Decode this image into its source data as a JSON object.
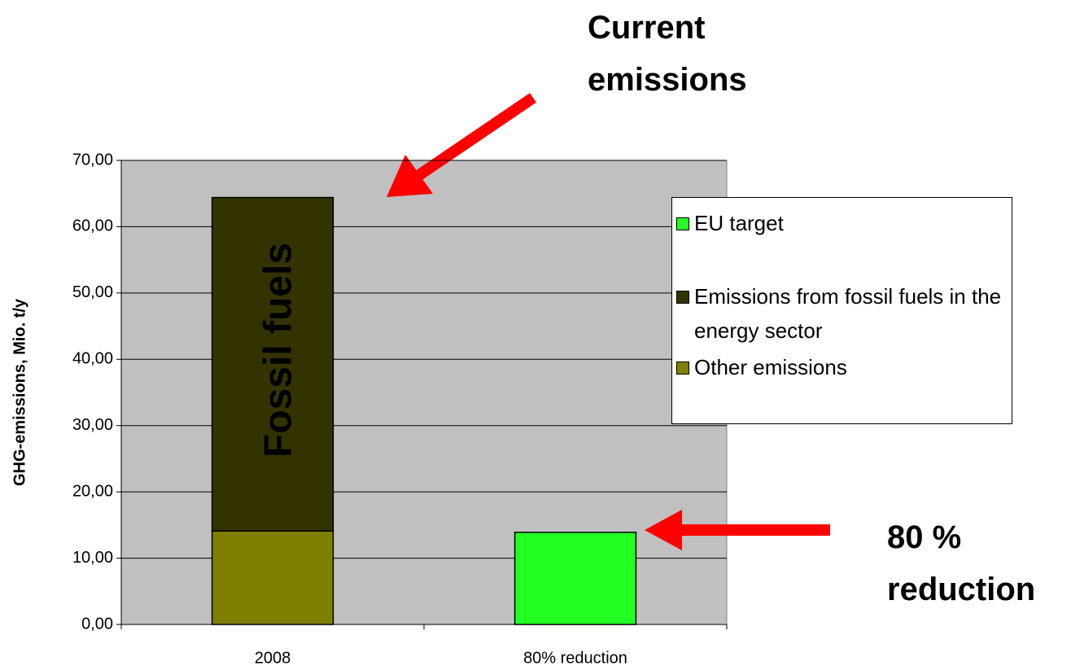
{
  "chart_data": {
    "type": "bar",
    "stacked": true,
    "ylabel": "GHG-emissions, Mio. t/y",
    "categories": [
      "2008",
      "80% reduction"
    ],
    "series": [
      {
        "name": "EU target",
        "color": "#22ff22",
        "values": [
          null,
          13.9
        ]
      },
      {
        "name": "Emissions from fossil fuels in the energy sector",
        "color": "#333300",
        "values": [
          50.3,
          null
        ]
      },
      {
        "name": "Other emissions",
        "color": "#808000",
        "values": [
          14.1,
          null
        ]
      }
    ],
    "ylim": [
      0,
      70
    ],
    "yticks": [
      {
        "value": 0,
        "label": "0,00"
      },
      {
        "value": 10,
        "label": "10,00"
      },
      {
        "value": 20,
        "label": "20,00"
      },
      {
        "value": 30,
        "label": "30,00"
      },
      {
        "value": 40,
        "label": "40,00"
      },
      {
        "value": 50,
        "label": "50,00"
      },
      {
        "value": 60,
        "label": "60,00"
      },
      {
        "value": 70,
        "label": "70,00"
      }
    ],
    "grid": true,
    "plot_background": "#c0c0c0",
    "annotations": [
      "Current emissions",
      "80 % reduction",
      "Fossil fuels"
    ]
  }
}
